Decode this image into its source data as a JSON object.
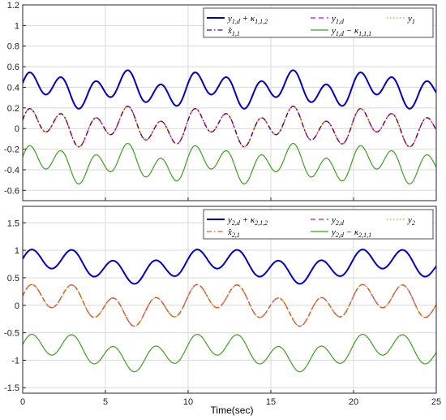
{
  "figure": {
    "xlabel": "Time(sec)"
  },
  "colors": {
    "upper": "#0000cc",
    "ref": "#cc33cc",
    "output": "#e6b800",
    "estimate": "#660066",
    "lower": "#3ca01e",
    "estimate_bottom": "#d2691e"
  },
  "chart_data": [
    {
      "type": "line",
      "panel": "top",
      "xlim": [
        0,
        25
      ],
      "ylim": [
        -0.7,
        1.2
      ],
      "xticks": [
        0,
        5,
        10,
        15,
        20,
        25
      ],
      "yticks": [
        -0.6,
        -0.4,
        -0.2,
        0,
        0.2,
        0.4,
        0.6,
        0.8,
        1,
        1.2
      ],
      "show_xtick_labels": false,
      "grid": true,
      "legend": "top-right",
      "series": [
        {
          "name": "y1,d + κ1,1,2",
          "legend_tex": [
            "y",
            "1,d",
            " + κ",
            "1,1,2"
          ],
          "color_key": "upper",
          "dash": "solid",
          "width": 2,
          "y0": 0.0,
          "offset": 0.38,
          "amp": 0.19
        },
        {
          "name": "y1,d",
          "legend_tex": [
            "y",
            "1,d"
          ],
          "color_key": "ref",
          "dash": "dashed",
          "width": 1.5,
          "y0": 0.0,
          "offset": 0.02,
          "amp": 0.2
        },
        {
          "name": "y1",
          "legend_tex": [
            "y",
            "1"
          ],
          "color_key": "output",
          "dash": "dotted",
          "width": 1.4,
          "y0": 0.0,
          "offset": 0.02,
          "amp": 0.2
        },
        {
          "name": "x̂1,1",
          "legend_tex": [
            "x̂",
            "1,1"
          ],
          "color_key": "estimate",
          "dash": "dashdot",
          "width": 1.3,
          "y0": 0.0,
          "offset": 0.02,
          "amp": 0.2
        },
        {
          "name": "y1,d − κ1,1,1",
          "legend_tex": [
            "y",
            "1,d",
            " − κ",
            "1,1,1"
          ],
          "color_key": "lower",
          "dash": "solid",
          "width": 1.2,
          "y0": 0.0,
          "offset": -0.34,
          "amp": 0.2
        }
      ],
      "shape": {
        "kind": "top",
        "periods": [
          2.0,
          5.0
        ],
        "weights": [
          0.65,
          0.35
        ]
      }
    },
    {
      "type": "line",
      "panel": "bottom",
      "xlim": [
        0,
        25
      ],
      "ylim": [
        -1.6,
        1.8
      ],
      "xticks": [
        0,
        5,
        10,
        15,
        20,
        25
      ],
      "yticks": [
        -1.5,
        -1,
        -0.5,
        0,
        0.5,
        1,
        1.5
      ],
      "show_xtick_labels": true,
      "grid": true,
      "legend": "top-right",
      "series": [
        {
          "name": "y2,d + κ2,1,2",
          "legend_tex": [
            "y",
            "2,d",
            " + κ",
            "2,1,2"
          ],
          "color_key": "upper",
          "dash": "solid",
          "width": 2,
          "offset": 0.72,
          "amp": 0.33
        },
        {
          "name": "y2,d",
          "legend_tex": [
            "y",
            "2,d"
          ],
          "color_key": "ref",
          "dash": "dashed",
          "width": 1.5,
          "offset": 0.02,
          "amp": 0.4
        },
        {
          "name": "y2",
          "legend_tex": [
            "y",
            "2"
          ],
          "color_key": "output",
          "dash": "dotted",
          "width": 1.4,
          "offset": 0.02,
          "amp": 0.4
        },
        {
          "name": "x̂2,1",
          "legend_tex": [
            "x̂",
            "2,1"
          ],
          "color_key": "estimate_bottom",
          "dash": "dashdot",
          "width": 1.3,
          "offset": 0.02,
          "amp": 0.4
        },
        {
          "name": "y2,d − κ2,1,1",
          "legend_tex": [
            "y",
            "2,d",
            " − κ",
            "2,1,1"
          ],
          "color_key": "lower",
          "dash": "solid",
          "width": 1.2,
          "offset": -0.85,
          "amp": 0.36
        }
      ],
      "shape": {
        "kind": "bottom",
        "periods": [
          2.5,
          10.0
        ],
        "weights": [
          0.55,
          0.45
        ]
      }
    }
  ]
}
